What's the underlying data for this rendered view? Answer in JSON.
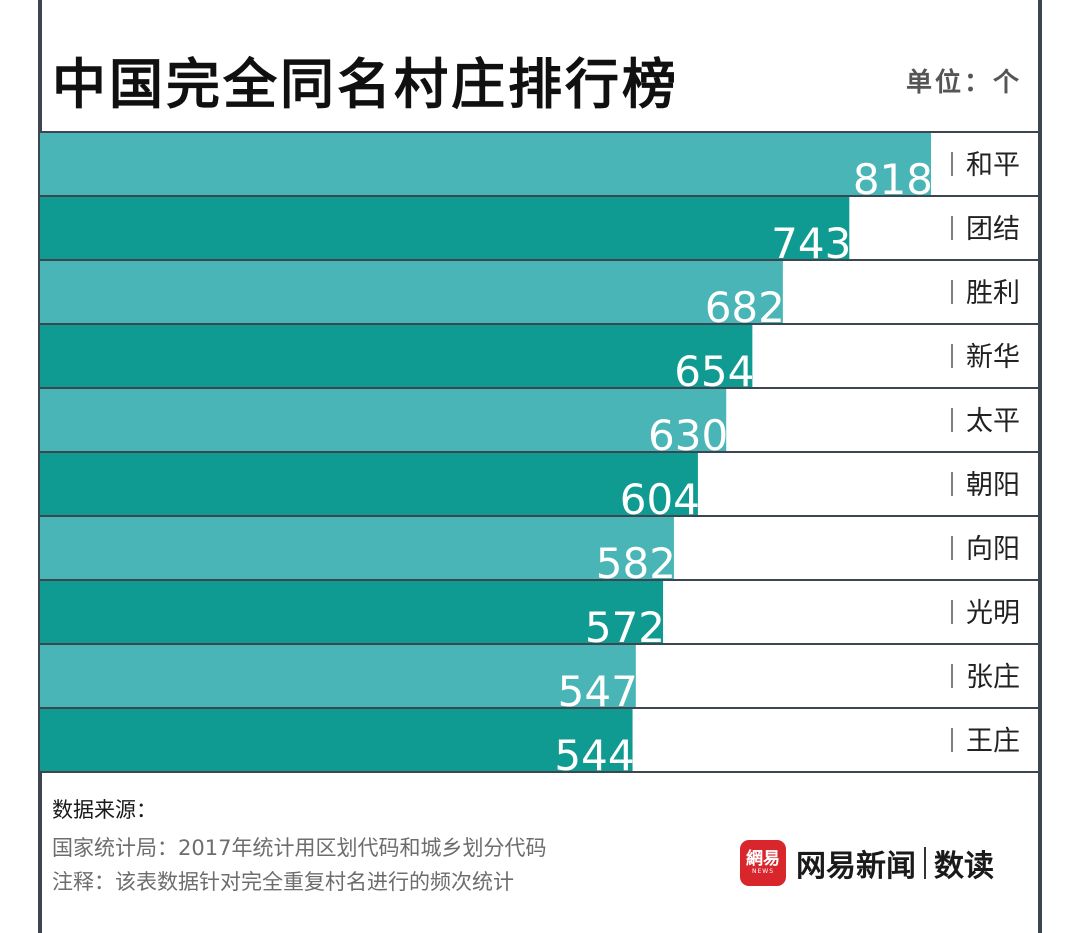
{
  "chart_data": {
    "type": "bar",
    "orientation": "horizontal",
    "title": "中国完全同名村庄排行榜",
    "unit_label": "单位：个",
    "categories": [
      "和平",
      "团结",
      "胜利",
      "新华",
      "太平",
      "朝阳",
      "向阳",
      "光明",
      "张庄",
      "王庄"
    ],
    "values": [
      818,
      743,
      682,
      654,
      630,
      604,
      582,
      572,
      547,
      544
    ],
    "xlabel": "",
    "ylabel": "",
    "grid": false,
    "legend": "none"
  },
  "colors": {
    "bar_light": "#4ab5b7",
    "bar_dark": "#0f9b91",
    "frame": "#3d4650"
  },
  "source": {
    "heading": "数据来源：",
    "line1": "国家统计局：2017年统计用区划代码和城乡划分代码",
    "line2": "注释：该表数据针对完全重复村名进行的频次统计"
  },
  "brand": {
    "logo_text": "網易",
    "logo_sub": "NEWS",
    "name": "网易新闻",
    "section": "数读"
  }
}
